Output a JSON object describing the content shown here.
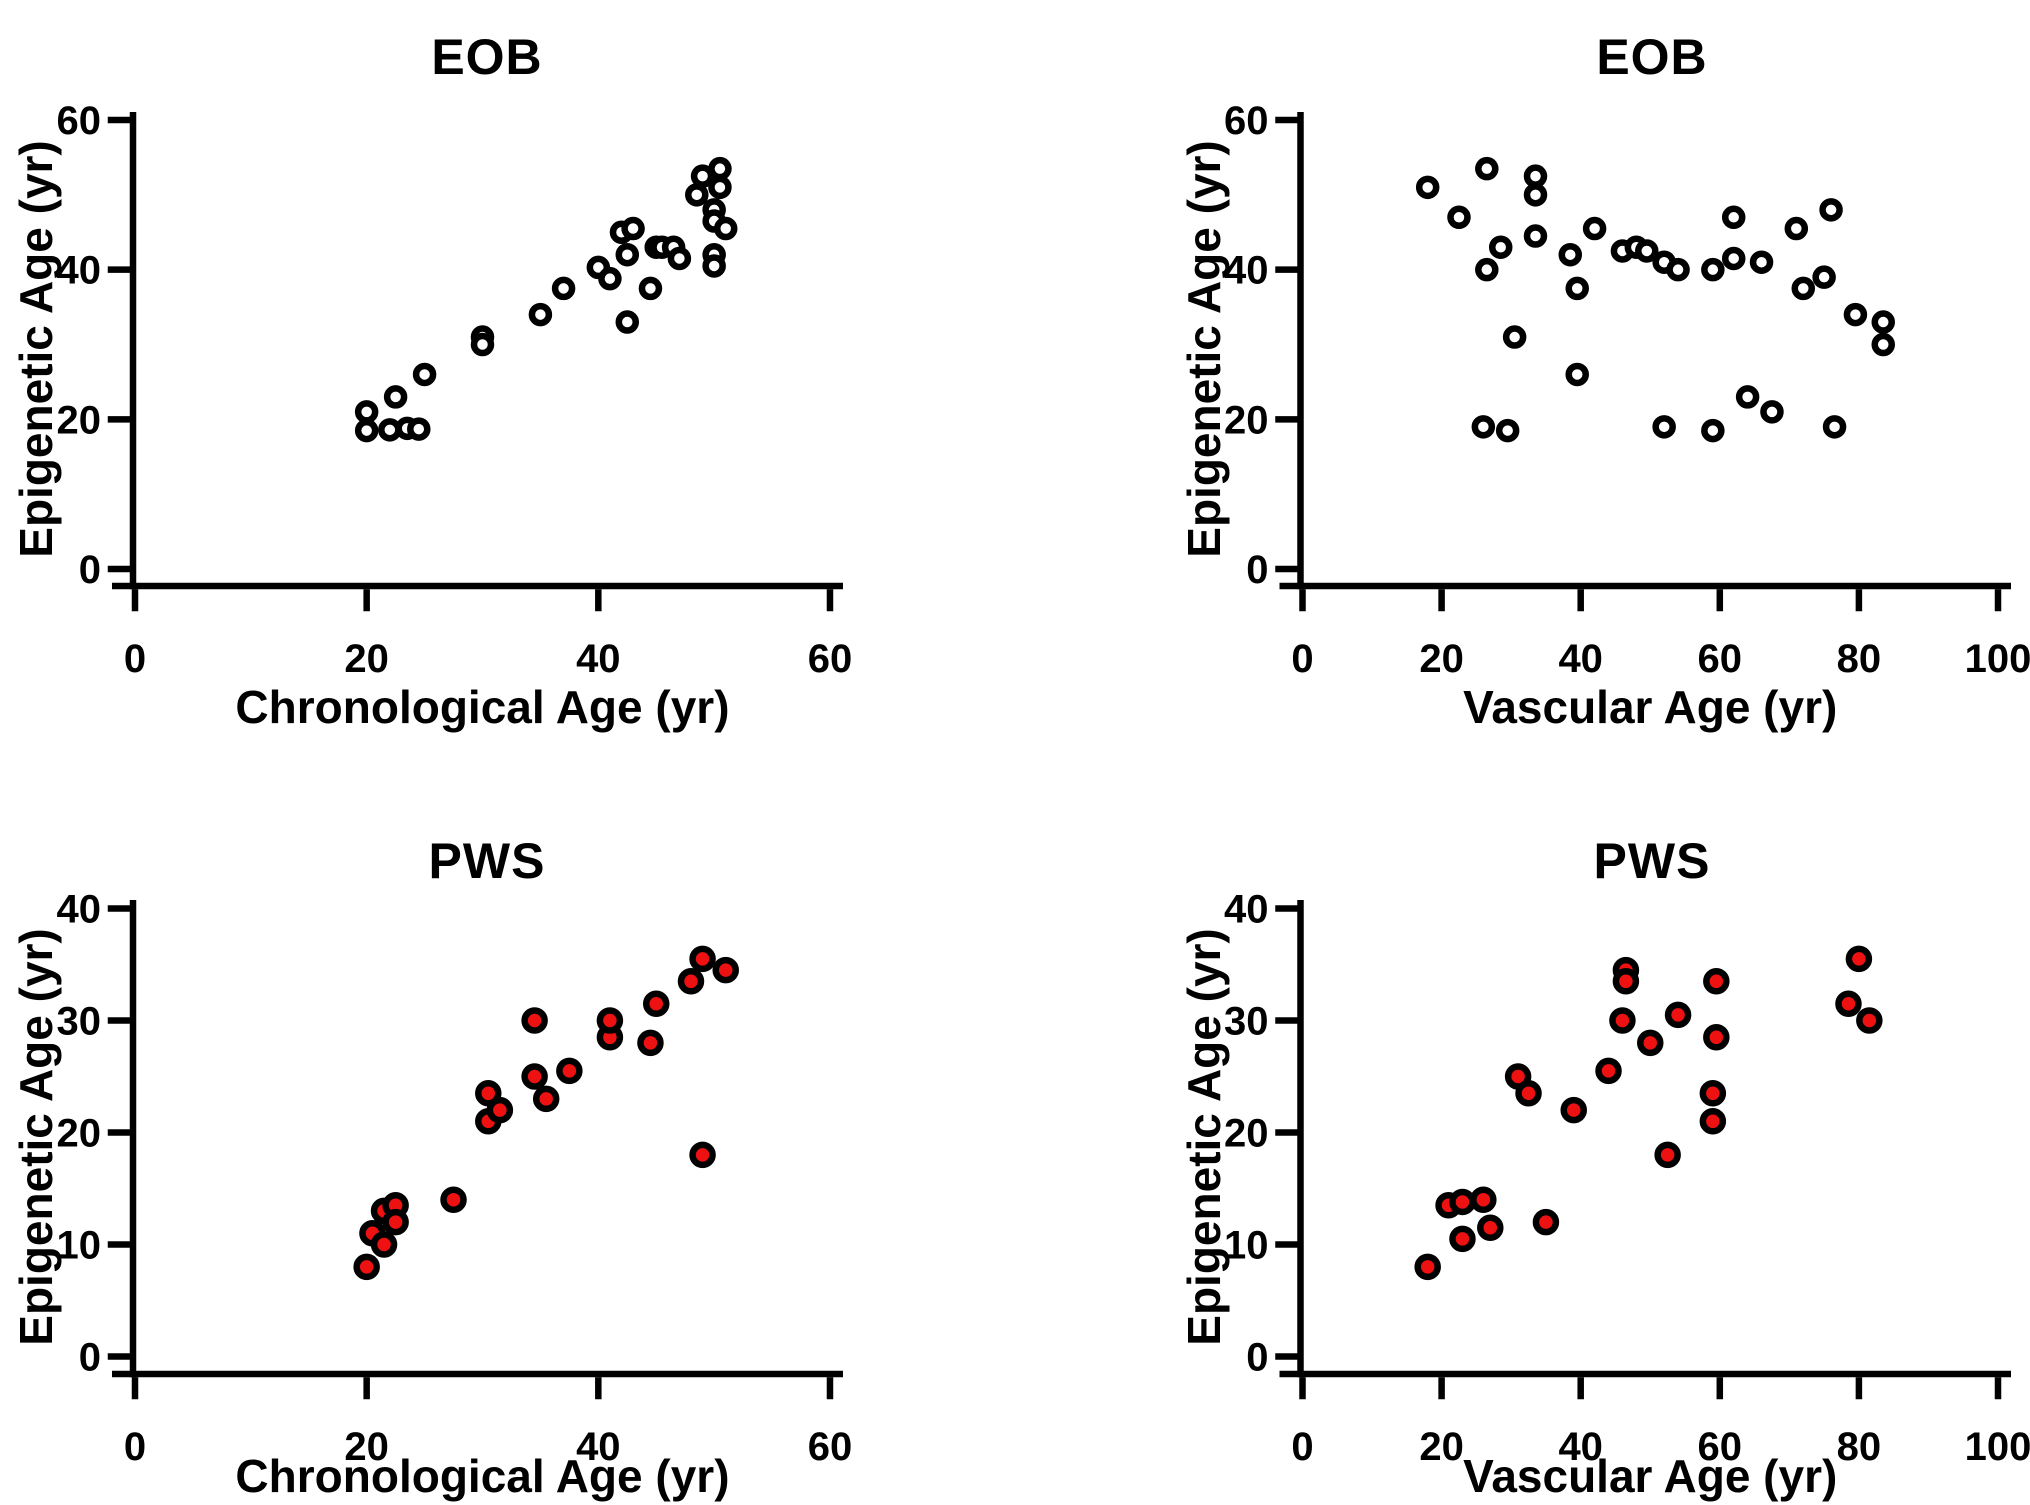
{
  "page": {
    "background": "#ffffff",
    "axis_color": "#000000"
  },
  "chart_data": [
    {
      "type": "scatter",
      "title": "EOB",
      "xlabel": "Chronological Age (yr)",
      "ylabel": "Epigenetic Age (yr)",
      "xlim": [
        0,
        60
      ],
      "ylim": [
        0,
        60
      ],
      "xticks": [
        0,
        20,
        40,
        60
      ],
      "yticks": [
        0,
        20,
        40,
        60
      ],
      "grid": false,
      "legend": "none",
      "marker": {
        "shape": "open-circle",
        "fill": "#ffffff",
        "stroke": "#000000",
        "radius": 8.5
      },
      "points": [
        [
          20,
          21
        ],
        [
          20,
          18.5
        ],
        [
          22,
          18.6
        ],
        [
          23.5,
          18.8
        ],
        [
          24.5,
          18.7
        ],
        [
          22.5,
          23
        ],
        [
          25,
          26
        ],
        [
          30,
          31
        ],
        [
          30,
          30
        ],
        [
          35,
          34
        ],
        [
          37,
          37.5
        ],
        [
          40,
          40.3
        ],
        [
          41,
          38.8
        ],
        [
          42,
          45
        ],
        [
          43,
          45.5
        ],
        [
          42.5,
          42
        ],
        [
          45,
          43
        ],
        [
          45.5,
          43
        ],
        [
          46.5,
          43
        ],
        [
          47,
          41.5
        ],
        [
          44.5,
          37.5
        ],
        [
          42.5,
          33
        ],
        [
          49,
          52.5
        ],
        [
          50.5,
          53.5
        ],
        [
          48.5,
          50
        ],
        [
          50.5,
          51
        ],
        [
          50,
          48
        ],
        [
          50,
          46.5
        ],
        [
          51,
          45.5
        ],
        [
          50,
          42
        ],
        [
          50,
          40.5
        ]
      ]
    },
    {
      "type": "scatter",
      "title": "EOB",
      "xlabel": "Vascular Age (yr)",
      "ylabel": "Epigenetic Age (yr)",
      "xlim": [
        0,
        100
      ],
      "ylim": [
        0,
        60
      ],
      "xticks": [
        0,
        20,
        40,
        60,
        80,
        100
      ],
      "yticks": [
        0,
        20,
        40,
        60
      ],
      "grid": false,
      "legend": "none",
      "marker": {
        "shape": "open-circle",
        "fill": "#ffffff",
        "stroke": "#000000",
        "radius": 8.5
      },
      "points": [
        [
          18,
          51
        ],
        [
          22.5,
          47
        ],
        [
          26.5,
          53.5
        ],
        [
          26.5,
          40
        ],
        [
          28.5,
          43
        ],
        [
          33.5,
          52.5
        ],
        [
          33.5,
          50
        ],
        [
          33.5,
          44.5
        ],
        [
          38.5,
          42
        ],
        [
          39.5,
          37.5
        ],
        [
          42,
          45.5
        ],
        [
          46,
          42.5
        ],
        [
          48,
          43
        ],
        [
          49.5,
          42.5
        ],
        [
          52,
          41
        ],
        [
          54,
          40
        ],
        [
          59,
          40
        ],
        [
          62,
          47
        ],
        [
          62,
          41.5
        ],
        [
          66,
          41
        ],
        [
          71,
          45.5
        ],
        [
          72,
          37.5
        ],
        [
          75,
          39
        ],
        [
          76,
          48
        ],
        [
          79.5,
          34
        ],
        [
          83.5,
          33
        ],
        [
          83.5,
          30
        ],
        [
          30.5,
          31
        ],
        [
          26,
          19
        ],
        [
          29.5,
          18.5
        ],
        [
          39.5,
          26
        ],
        [
          52,
          19
        ],
        [
          59,
          18.5
        ],
        [
          64,
          23
        ],
        [
          67.5,
          21
        ],
        [
          76.5,
          19
        ]
      ]
    },
    {
      "type": "scatter",
      "title": "PWS",
      "xlabel": "Chronological Age (yr)",
      "ylabel": "Epigenetic Age (yr)",
      "xlim": [
        0,
        60
      ],
      "ylim": [
        0,
        40
      ],
      "xticks": [
        0,
        20,
        40,
        60
      ],
      "yticks": [
        0,
        10,
        20,
        30,
        40
      ],
      "grid": false,
      "legend": "none",
      "marker": {
        "shape": "filled-circle",
        "fill": "#ee1111",
        "stroke": "#000000",
        "radius": 10
      },
      "points": [
        [
          20,
          8
        ],
        [
          20.5,
          11
        ],
        [
          21.5,
          10
        ],
        [
          21.5,
          13
        ],
        [
          22.5,
          13.5
        ],
        [
          22.5,
          12
        ],
        [
          27.5,
          14
        ],
        [
          30.5,
          21
        ],
        [
          31.5,
          22
        ],
        [
          30.5,
          23.5
        ],
        [
          34.5,
          25
        ],
        [
          35.5,
          23
        ],
        [
          37.5,
          25.5
        ],
        [
          34.5,
          30
        ],
        [
          41,
          28.5
        ],
        [
          41,
          30
        ],
        [
          44.5,
          28
        ],
        [
          45,
          31.5
        ],
        [
          48,
          33.5
        ],
        [
          49,
          35.5
        ],
        [
          51,
          34.5
        ],
        [
          49,
          18
        ]
      ]
    },
    {
      "type": "scatter",
      "title": "PWS",
      "xlabel": "Vascular Age (yr)",
      "ylabel": "Epigenetic Age (yr)",
      "xlim": [
        0,
        100
      ],
      "ylim": [
        0,
        40
      ],
      "xticks": [
        0,
        20,
        40,
        60,
        80,
        100
      ],
      "yticks": [
        0,
        10,
        20,
        30,
        40
      ],
      "grid": false,
      "legend": "none",
      "marker": {
        "shape": "filled-circle",
        "fill": "#ee1111",
        "stroke": "#000000",
        "radius": 10
      },
      "points": [
        [
          18,
          8
        ],
        [
          21,
          13.5
        ],
        [
          23,
          13.8
        ],
        [
          26,
          14
        ],
        [
          23,
          10.5
        ],
        [
          27,
          11.5
        ],
        [
          35,
          12
        ],
        [
          31,
          25
        ],
        [
          32.5,
          23.5
        ],
        [
          39,
          22
        ],
        [
          44,
          25.5
        ],
        [
          46.5,
          34.5
        ],
        [
          46.5,
          33.5
        ],
        [
          46,
          30
        ],
        [
          50,
          28
        ],
        [
          54,
          30.5
        ],
        [
          52.5,
          18
        ],
        [
          59.5,
          33.5
        ],
        [
          59.5,
          28.5
        ],
        [
          59,
          23.5
        ],
        [
          59,
          21
        ],
        [
          80,
          35.5
        ],
        [
          78.5,
          31.5
        ],
        [
          81.5,
          30
        ]
      ]
    }
  ]
}
